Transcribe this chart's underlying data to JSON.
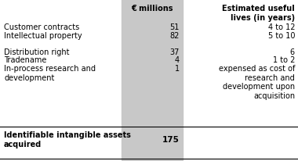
{
  "title_col1": "€ millions",
  "title_col2": "Estimated useful\nlives (in years)",
  "rows": [
    {
      "label": "Customer contracts",
      "value": "51",
      "useful_life": "4 to 12"
    },
    {
      "label": "Intellectual property",
      "value": "82",
      "useful_life": "5 to 10"
    },
    {
      "label": "",
      "value": "",
      "useful_life": ""
    },
    {
      "label": "Distribution right",
      "value": "37",
      "useful_life": "6"
    },
    {
      "label": "Tradename",
      "value": "4",
      "useful_life": "1 to 2"
    },
    {
      "label": "In-process research and\ndevelopment",
      "value": "1",
      "useful_life": "expensed as cost of\nresearch and\ndevelopment upon\nacquisition"
    }
  ],
  "total_label": "Identifiable intangible assets\nacquired",
  "total_value": "175",
  "shaded_color": "#c8c8c8",
  "bg_color": "#ffffff",
  "text_color": "#000000",
  "fs": 7.0
}
